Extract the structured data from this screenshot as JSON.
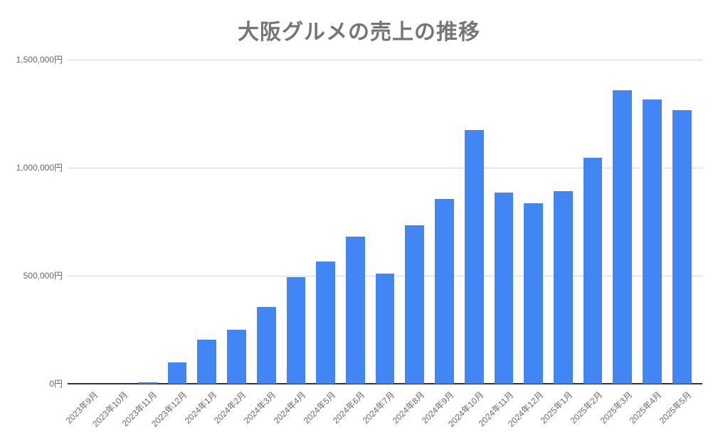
{
  "chart": {
    "title": "大阪グルメの売上の推移"
  },
  "chart_data": {
    "type": "bar",
    "title": "大阪グルメの売上の推移",
    "categories": [
      "2023年9月",
      "2023年10月",
      "2023年11月",
      "2023年12月",
      "2024年1月",
      "2024年2月",
      "2024年3月",
      "2024年4月",
      "2024年5月",
      "2024年6月",
      "2024年7月",
      "2024年8月",
      "2024年9月",
      "2024年10月",
      "2024年11月",
      "2024年12月",
      "2025年1月",
      "2025年2月",
      "2025年3月",
      "2025年4月",
      "2025年5月"
    ],
    "values": [
      0,
      0,
      8000,
      100000,
      205000,
      250000,
      355000,
      495000,
      565000,
      680000,
      510000,
      735000,
      855000,
      1175000,
      885000,
      835000,
      890000,
      1045000,
      1360000,
      1315000,
      1265000
    ],
    "xlabel": "",
    "ylabel": "",
    "ylim": [
      0,
      1500000
    ],
    "y_tick_values": [
      0,
      500000,
      1000000,
      1500000
    ],
    "y_tick_labels": [
      "0円",
      "500,000円",
      "1,000,000円",
      "1,500,000円"
    ],
    "grid": true,
    "legend_position": "none",
    "bar_color": "#4285f4"
  },
  "colors": {
    "bar": "#4285f4",
    "title_text": "#757575",
    "tick_text": "#666666",
    "gridline": "#d9d9d9",
    "baseline": "#333333",
    "background": "#ffffff"
  }
}
